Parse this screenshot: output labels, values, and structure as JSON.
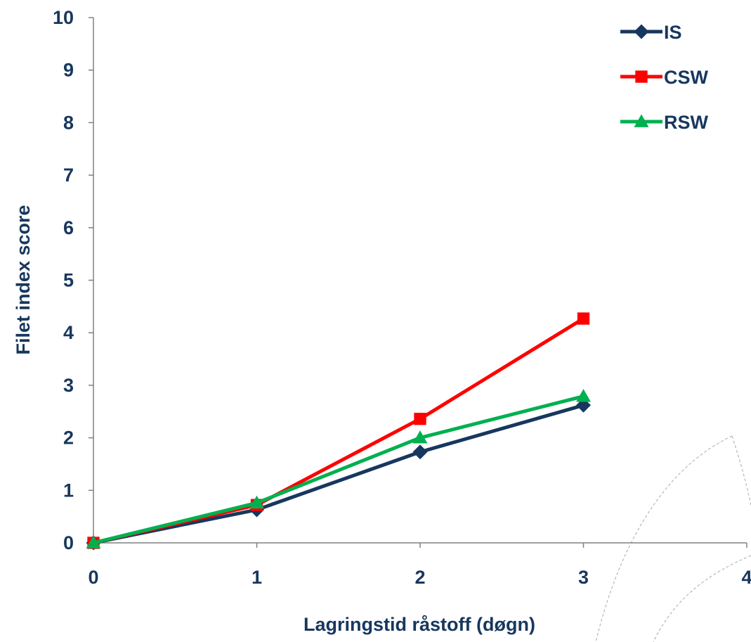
{
  "chart_data": {
    "type": "line",
    "title": "",
    "xlabel": "Lagringstid råstoff (døgn)",
    "ylabel": "Filet index score",
    "xlim": [
      0,
      4
    ],
    "ylim": [
      0,
      10
    ],
    "x_ticks": [
      "0",
      "1",
      "2",
      "3",
      "4"
    ],
    "y_ticks": [
      "0",
      "1",
      "2",
      "3",
      "4",
      "5",
      "6",
      "7",
      "8",
      "9",
      "10"
    ],
    "grid": false,
    "legend_position": "top-right",
    "x": [
      0,
      1,
      2,
      3
    ],
    "series": [
      {
        "name": "IS",
        "values": [
          0,
          0.63,
          1.73,
          2.62
        ],
        "color": "#17375e",
        "marker": "diamond"
      },
      {
        "name": "CSW",
        "values": [
          0,
          0.72,
          2.36,
          4.27
        ],
        "color": "#ff0000",
        "marker": "square"
      },
      {
        "name": "RSW",
        "values": [
          0,
          0.76,
          2.0,
          2.79
        ],
        "color": "#00b050",
        "marker": "triangle"
      }
    ],
    "text_color": "#17375e"
  }
}
